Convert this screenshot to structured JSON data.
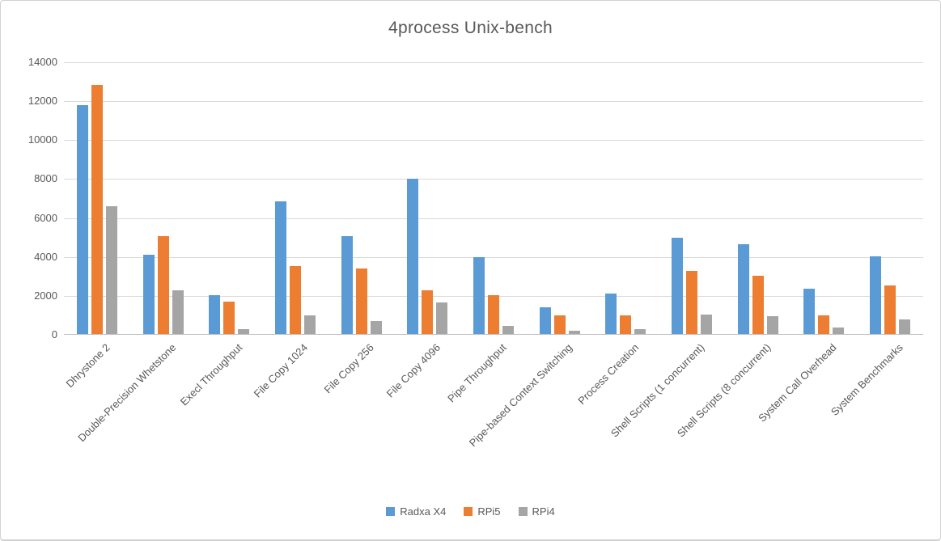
{
  "chart_data": {
    "type": "bar",
    "title": "4process Unix-bench",
    "categories": [
      "Dhrystone 2",
      "Double-Precision Whetstone",
      "Execl Throughput",
      "File Copy 1024",
      "File Copy 256",
      "File Copy 4096",
      "Pipe Throughput",
      "Pipe-based Context Switching",
      "Process Creation",
      "Shell Scripts (1 concurrent)",
      "Shell Scripts (8 concurrent)",
      "System Call Overhead",
      "System Benchmarks"
    ],
    "series": [
      {
        "name": "Radxa X4",
        "color": "#5B9BD5",
        "values": [
          11800,
          4100,
          2050,
          6850,
          5050,
          8000,
          4000,
          1400,
          2100,
          5000,
          4650,
          2350,
          4050
        ]
      },
      {
        "name": "RPi5",
        "color": "#ED7D31",
        "values": [
          12850,
          5050,
          1700,
          3550,
          3400,
          2300,
          2050,
          1000,
          1000,
          3300,
          3050,
          1000,
          2550
        ]
      },
      {
        "name": "RPi4",
        "color": "#A5A5A5",
        "values": [
          6600,
          2300,
          280,
          1000,
          700,
          1650,
          450,
          200,
          300,
          1050,
          950,
          380,
          800
        ]
      }
    ],
    "xlabel": "",
    "ylabel": "",
    "ylim": [
      0,
      14000
    ],
    "y_ticks": [
      0,
      2000,
      4000,
      6000,
      8000,
      10000,
      12000,
      14000
    ],
    "grid": "horizontal",
    "legend_position": "bottom"
  },
  "colors": {
    "text": "#595959",
    "gridline": "#D9D9D9",
    "axis": "#BFBFBF",
    "frame_border": "#D2D2D2",
    "background": "#FFFFFF"
  }
}
